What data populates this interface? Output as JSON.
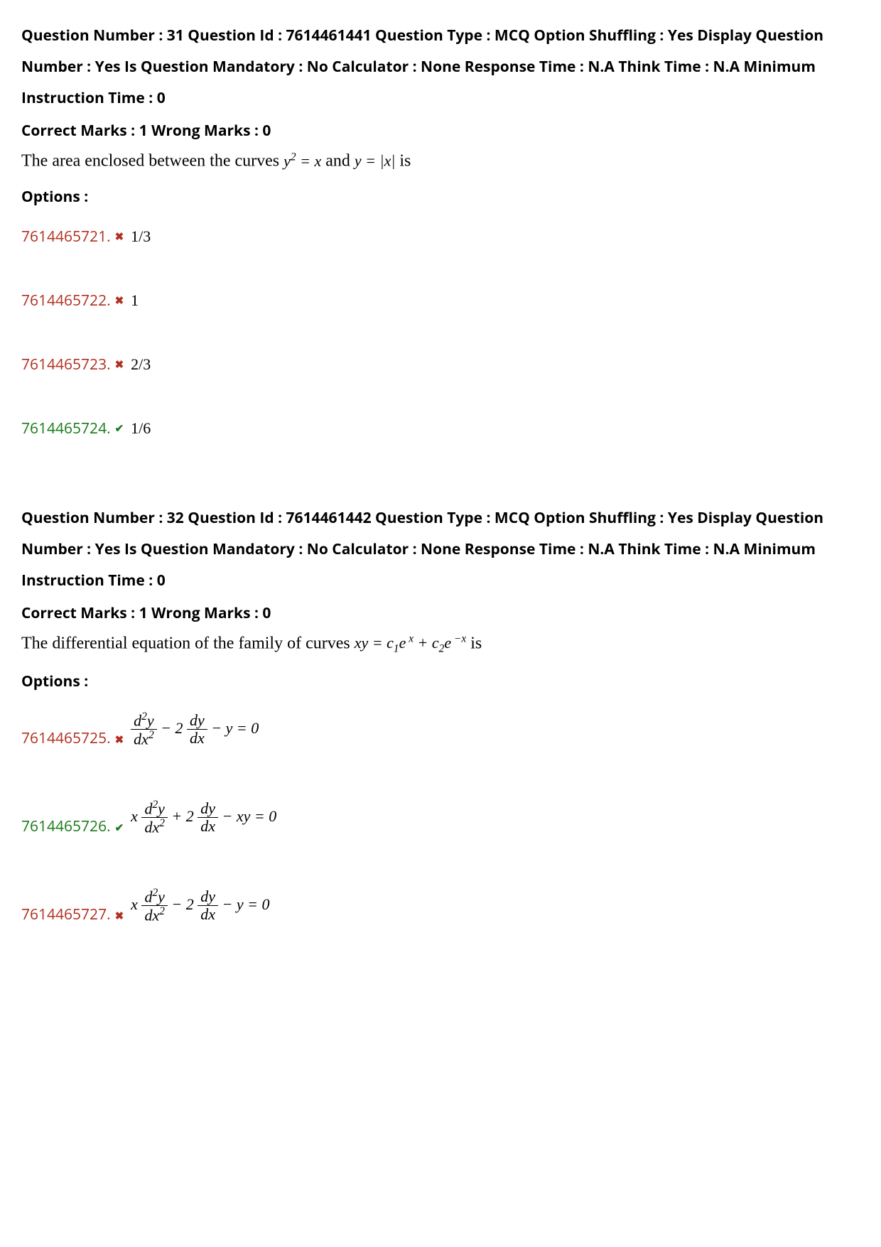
{
  "questions": [
    {
      "meta_header": "Question Number : 31 Question Id : 7614461441 Question Type : MCQ Option Shuffling : Yes Display Question Number : Yes Is Question Mandatory : No Calculator : None Response Time : N.A Think Time : N.A Minimum Instruction Time : 0",
      "marks_line": "Correct Marks : 1 Wrong Marks : 0",
      "question_prefix": "The area enclosed between the curves ",
      "question_suffix": " is",
      "options_label": "Options :",
      "options": [
        {
          "id": "7614465721.",
          "status": "wrong",
          "content": "1/3"
        },
        {
          "id": "7614465722.",
          "status": "wrong",
          "content": "1"
        },
        {
          "id": "7614465723.",
          "status": "wrong",
          "content": "2/3"
        },
        {
          "id": "7614465724.",
          "status": "correct",
          "content": "1/6"
        }
      ]
    },
    {
      "meta_header": "Question Number : 32 Question Id : 7614461442 Question Type : MCQ Option Shuffling : Yes Display Question Number : Yes Is Question Mandatory : No Calculator : None Response Time : N.A Think Time : N.A Minimum Instruction Time : 0",
      "marks_line": "Correct Marks : 1 Wrong Marks : 0",
      "question_prefix": "The differential equation of the family of curves  ",
      "question_suffix": " is",
      "options_label": "Options :",
      "options": [
        {
          "id": "7614465725.",
          "status": "wrong"
        },
        {
          "id": "7614465726.",
          "status": "correct"
        },
        {
          "id": "7614465727.",
          "status": "wrong"
        }
      ]
    }
  ],
  "icons": {
    "wrong": "✖",
    "correct": "✔"
  },
  "colors": {
    "wrong": "#b03020",
    "correct": "#1a7a1a",
    "text": "#000000"
  }
}
